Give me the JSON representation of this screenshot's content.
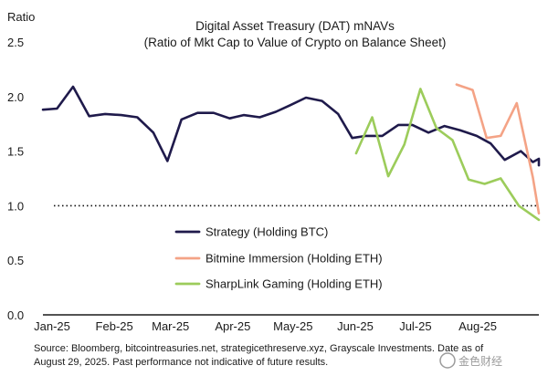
{
  "chart_data": {
    "type": "line",
    "title": "Digital Asset Treasury (DAT) mNAVs",
    "subtitle": "(Ratio of Mkt Cap to Value of Crypto on Balance Sheet)",
    "ylabel": "Ratio",
    "xlabel": "",
    "ylim": [
      0,
      2.5
    ],
    "y_ticks": [
      "0.0",
      "0.5",
      "1.0",
      "1.5",
      "2.0",
      "2.5"
    ],
    "x_ticks": [
      "Jan-25",
      "Feb-25",
      "Mar-25",
      "Apr-25",
      "May-25",
      "Jun-25",
      "Jul-25",
      "Aug-25"
    ],
    "x_range": [
      "2025-01-01",
      "2025-09-05"
    ],
    "reference_line": {
      "y": 1.0,
      "style": "dotted",
      "color": "#111111"
    },
    "grid": false,
    "legend_position": "center-left",
    "series": [
      {
        "name": "Strategy (Holding BTC)",
        "color": "#1f1a4b",
        "points": [
          [
            "2025-01-01",
            1.88
          ],
          [
            "2025-01-08",
            1.89
          ],
          [
            "2025-01-16",
            2.09
          ],
          [
            "2025-01-24",
            1.82
          ],
          [
            "2025-02-01",
            1.84
          ],
          [
            "2025-02-09",
            1.83
          ],
          [
            "2025-02-17",
            1.81
          ],
          [
            "2025-02-25",
            1.67
          ],
          [
            "2025-03-04",
            1.41
          ],
          [
            "2025-03-11",
            1.79
          ],
          [
            "2025-03-19",
            1.85
          ],
          [
            "2025-03-27",
            1.85
          ],
          [
            "2025-04-04",
            1.8
          ],
          [
            "2025-04-11",
            1.83
          ],
          [
            "2025-04-19",
            1.81
          ],
          [
            "2025-04-27",
            1.86
          ],
          [
            "2025-05-04",
            1.92
          ],
          [
            "2025-05-12",
            1.99
          ],
          [
            "2025-05-20",
            1.96
          ],
          [
            "2025-05-28",
            1.84
          ],
          [
            "2025-06-04",
            1.62
          ],
          [
            "2025-06-11",
            1.64
          ],
          [
            "2025-06-19",
            1.64
          ],
          [
            "2025-06-27",
            1.74
          ],
          [
            "2025-07-04",
            1.74
          ],
          [
            "2025-07-12",
            1.67
          ],
          [
            "2025-07-20",
            1.73
          ],
          [
            "2025-07-28",
            1.69
          ],
          [
            "2025-08-05",
            1.64
          ],
          [
            "2025-08-12",
            1.57
          ],
          [
            "2025-08-19",
            1.42
          ],
          [
            "2025-08-27",
            1.5
          ],
          [
            "2025-09-02",
            1.4
          ],
          [
            "2025-09-09",
            1.43
          ],
          [
            "2025-09-16",
            1.37
          ]
        ]
      },
      {
        "name": "Bitmine Immersion (Holding ETH)",
        "color": "#f4a386",
        "points": [
          [
            "2025-07-26",
            2.11
          ],
          [
            "2025-08-03",
            2.06
          ],
          [
            "2025-08-10",
            1.62
          ],
          [
            "2025-08-17",
            1.64
          ],
          [
            "2025-08-25",
            1.94
          ],
          [
            "2025-09-02",
            1.26
          ],
          [
            "2025-09-08",
            0.93
          ]
        ]
      },
      {
        "name": "SharpLink Gaming (Holding ETH)",
        "color": "#9ccc5b",
        "points": [
          [
            "2025-06-06",
            1.48
          ],
          [
            "2025-06-14",
            1.81
          ],
          [
            "2025-06-22",
            1.27
          ],
          [
            "2025-06-30",
            1.56
          ],
          [
            "2025-07-08",
            2.07
          ],
          [
            "2025-07-16",
            1.71
          ],
          [
            "2025-07-24",
            1.6
          ],
          [
            "2025-08-01",
            1.24
          ],
          [
            "2025-08-09",
            1.2
          ],
          [
            "2025-08-17",
            1.25
          ],
          [
            "2025-08-26",
            1.0
          ],
          [
            "2025-09-05",
            0.87
          ]
        ]
      }
    ]
  },
  "source_note": {
    "line1": "Source: Bloomberg, bitcointreasuries.net, strategicethreserve.xyz, Grayscale Investments. Date as of",
    "line2": "August 29, 2025. Past performance not indicative of future results."
  },
  "watermark": {
    "text": "金色财经",
    "color": "#8a8a8a"
  }
}
